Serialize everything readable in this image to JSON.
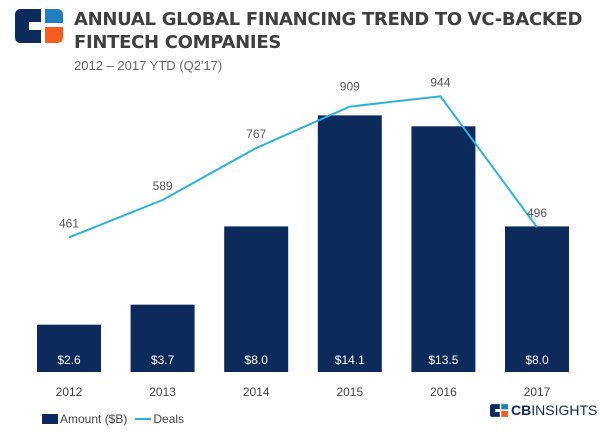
{
  "header": {
    "title_line1": "ANNUAL GLOBAL FINANCING TREND TO VC-BACKED",
    "title_line2": "FINTECH COMPANIES",
    "subtitle": "2012 – 2017 YTD (Q2'17)"
  },
  "brand": {
    "logo_text_bold": "CB",
    "logo_text": "INSIGHTS"
  },
  "colors": {
    "bars": "#0d2a5c",
    "line": "#2bb3d9",
    "logo_orange": "#f45d1c",
    "logo_blue": "#1f7fc0"
  },
  "chart_data": {
    "type": "bar+line",
    "categories": [
      "2012",
      "2013",
      "2014",
      "2015",
      "2016",
      "2017"
    ],
    "series": [
      {
        "name": "Amount ($B)",
        "type": "bar",
        "values": [
          2.6,
          3.7,
          8.0,
          14.1,
          13.5,
          8.0
        ],
        "labels": [
          "$2.6",
          "$3.7",
          "$8.0",
          "$14.1",
          "$13.5",
          "$8.0"
        ]
      },
      {
        "name": "Deals",
        "type": "line",
        "values": [
          461,
          589,
          767,
          909,
          944,
          496
        ],
        "labels": [
          "461",
          "589",
          "767",
          "909",
          "944",
          "496"
        ]
      }
    ],
    "grid": false,
    "legend": "bottom-left"
  }
}
